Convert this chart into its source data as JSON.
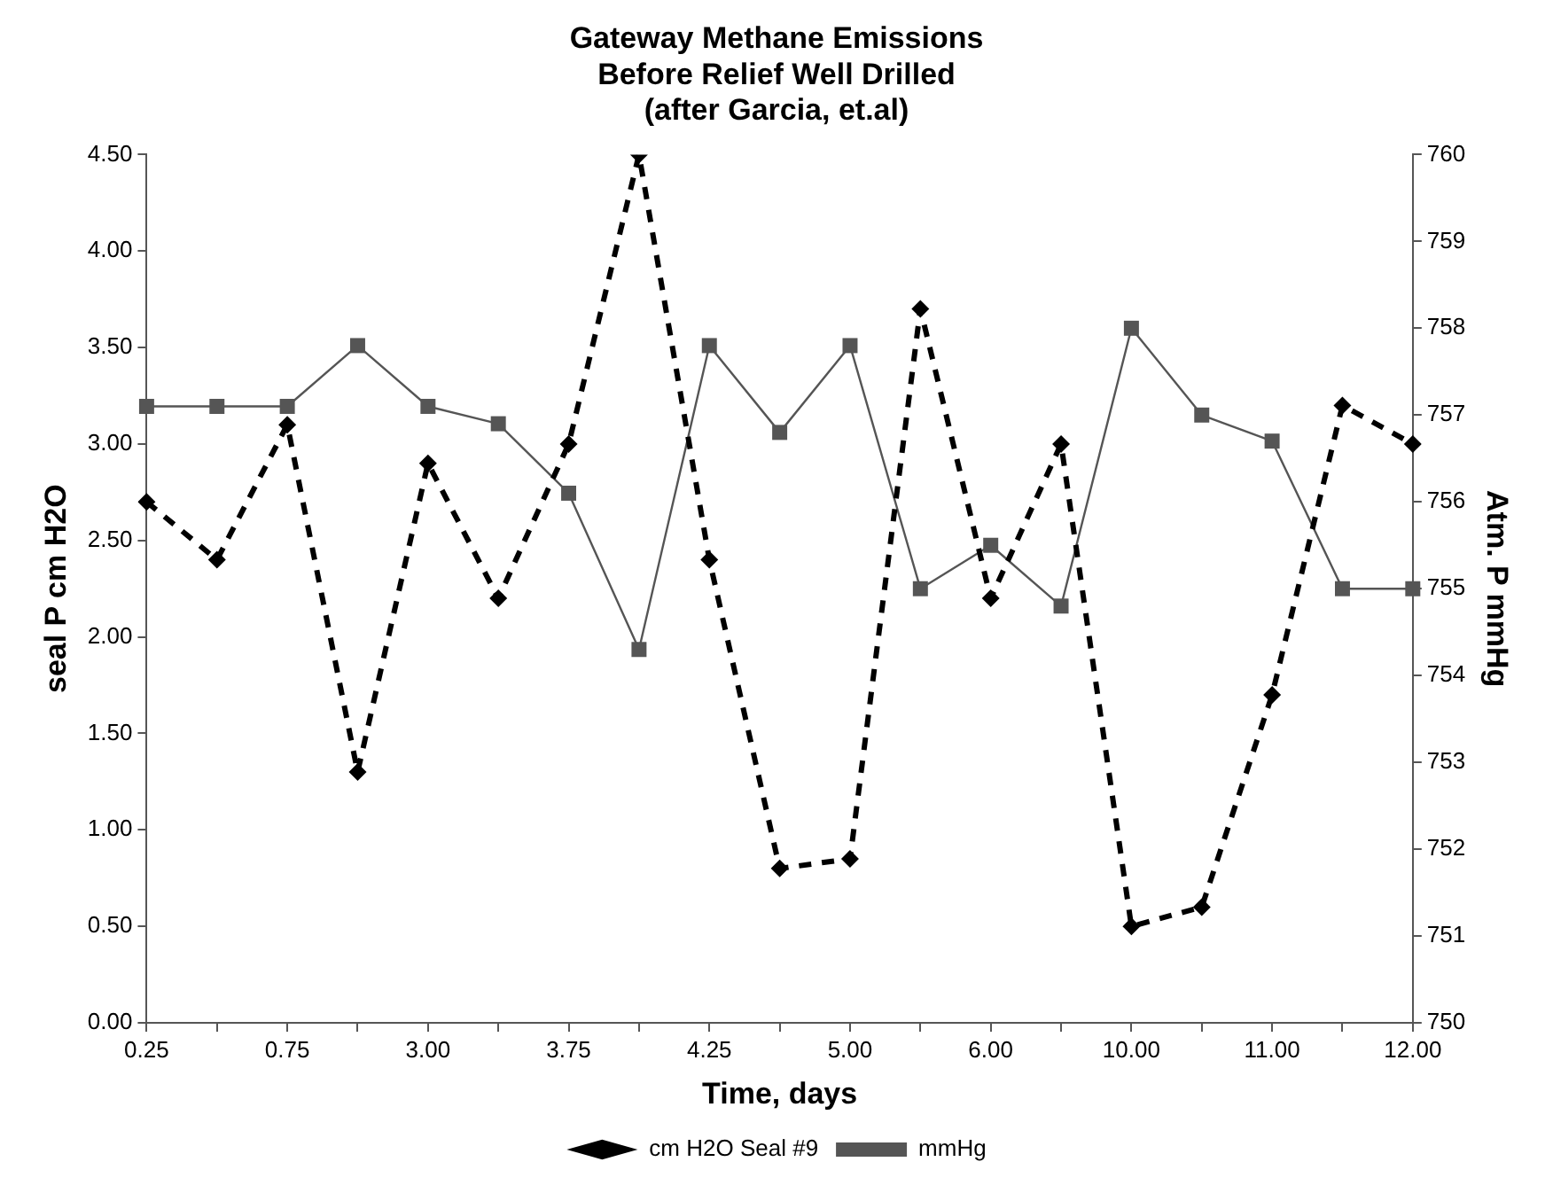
{
  "chart_data": {
    "type": "line",
    "title": "Gateway Methane Emissions\nBefore Relief Well Drilled\n(after Garcia, et.al)",
    "xlabel": "Time, days",
    "ylabel": "seal P cm H2O",
    "y2label": "Atm. P mmHg",
    "categories": [
      "0.25",
      null,
      "0.75",
      null,
      "3.00",
      null,
      "3.75",
      null,
      "4.25",
      null,
      "5.00",
      null,
      "6.00",
      null,
      "10.00",
      null,
      "11.00",
      null,
      "12.00"
    ],
    "series": [
      {
        "name": "cm H2O Seal #9",
        "color": "#000000",
        "marker": "diamond",
        "line_style": "dashed",
        "values": [
          2.7,
          2.4,
          3.1,
          1.3,
          2.9,
          2.2,
          3.0,
          4.5,
          2.4,
          0.8,
          0.85,
          3.7,
          2.2,
          3.0,
          0.5,
          0.6,
          1.7,
          3.2,
          3.0
        ]
      },
      {
        "name": "mmHg",
        "color": "#555555",
        "marker": "square",
        "line_style": "solid",
        "axis": "y2",
        "values": [
          757.1,
          757.1,
          757.1,
          757.8,
          757.1,
          756.9,
          756.1,
          754.3,
          757.8,
          756.8,
          757.8,
          755.0,
          755.5,
          754.8,
          758.0,
          757.0,
          756.7,
          755.0,
          755.0
        ]
      }
    ],
    "ylim": [
      0,
      4.5
    ],
    "yticks": [
      {
        "value": 0,
        "label": "0.00"
      },
      {
        "value": 0.5,
        "label": "0.50"
      },
      {
        "value": 1,
        "label": "1.00"
      },
      {
        "value": 1.5,
        "label": "1.50"
      },
      {
        "value": 2,
        "label": "2.00"
      },
      {
        "value": 2.5,
        "label": "2.50"
      },
      {
        "value": 3,
        "label": "3.00"
      },
      {
        "value": 3.5,
        "label": "3.50"
      },
      {
        "value": 4,
        "label": "4.00"
      },
      {
        "value": 4.5,
        "label": "4.50"
      }
    ],
    "y2lim": [
      750,
      760
    ],
    "y2ticks": [
      750,
      751,
      752,
      753,
      754,
      755,
      756,
      757,
      758,
      759,
      760
    ],
    "grid": false,
    "legend": "bottom"
  }
}
